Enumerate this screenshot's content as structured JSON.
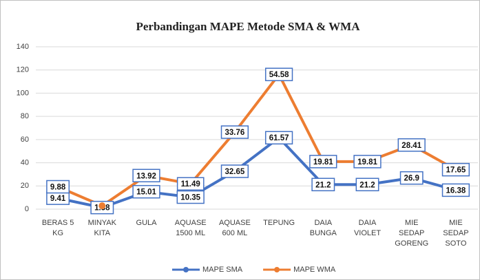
{
  "chart_data": {
    "type": "stacked-line",
    "title": "Perbandingan MAPE Metode SMA & WMA",
    "categories": [
      [
        "BERAS 5",
        "KG"
      ],
      [
        "MINYAK",
        "KITA"
      ],
      [
        "GULA"
      ],
      [
        "AQUASE",
        "1500 ML"
      ],
      [
        "AQUASE",
        "600 ML"
      ],
      [
        "TEPUNG"
      ],
      [
        "DAIA",
        "BUNGA"
      ],
      [
        "DAIA",
        "VIOLET"
      ],
      [
        "MIE",
        "SEDAP",
        "GORENG"
      ],
      [
        "MIE",
        "SEDAP",
        "SOTO"
      ]
    ],
    "series": [
      {
        "name": "MAPE SMA",
        "color": "#4472c4",
        "values": [
          9.41,
          1.38,
          15.01,
          10.35,
          32.65,
          61.57,
          21.2,
          21.2,
          26.9,
          16.38
        ]
      },
      {
        "name": "MAPE WMA",
        "color": "#ed7d31",
        "values": [
          9.88,
          1.5,
          13.92,
          11.49,
          33.76,
          54.58,
          19.81,
          19.81,
          28.41,
          17.65
        ]
      }
    ],
    "ylim": [
      0,
      140
    ],
    "yticks": [
      0,
      20,
      40,
      60,
      80,
      100,
      120,
      140
    ],
    "grid": true,
    "legend": "bottom"
  }
}
